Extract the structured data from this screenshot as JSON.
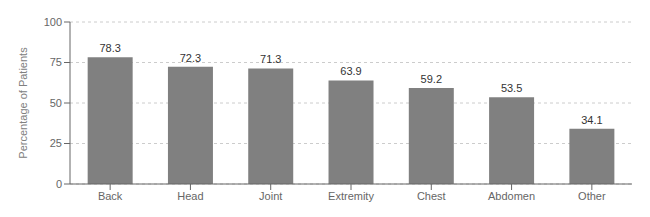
{
  "chart_data": {
    "type": "bar",
    "categories": [
      "Back",
      "Head",
      "Joint",
      "Extremity",
      "Chest",
      "Abdomen",
      "Other"
    ],
    "values": [
      78.3,
      72.3,
      71.3,
      63.9,
      59.2,
      53.5,
      34.1
    ],
    "ylabel": "Percentage of Patients",
    "ylim": [
      0,
      100
    ],
    "yticks": [
      0,
      25,
      50,
      75,
      100
    ],
    "color": "#808080",
    "grid": true,
    "data_labels": true
  }
}
